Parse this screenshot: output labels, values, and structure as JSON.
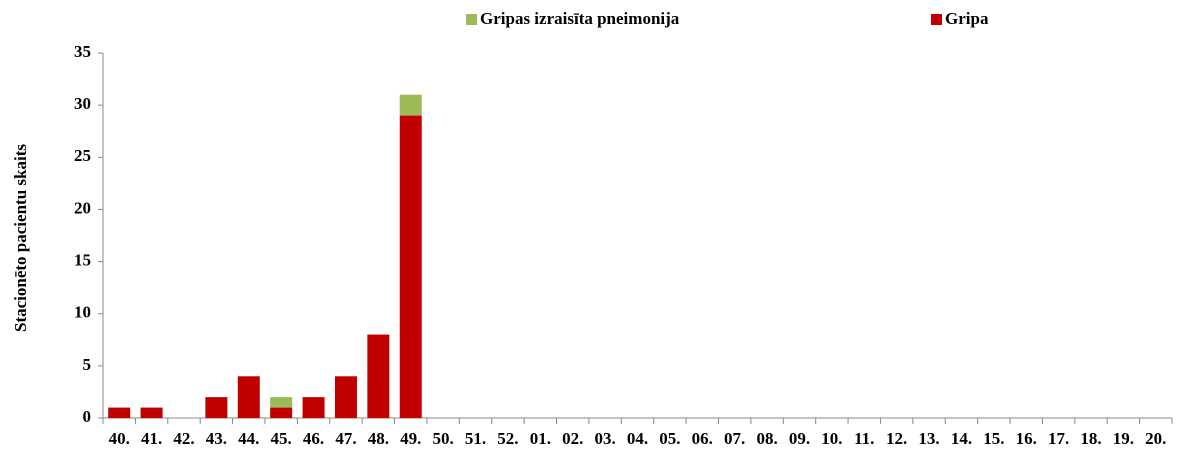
{
  "chart_data": {
    "type": "stacked_bar",
    "y_label": "Stacionēto pacientu skaits",
    "categories": [
      "40.",
      "41.",
      "42.",
      "43.",
      "44.",
      "45.",
      "46.",
      "47.",
      "48.",
      "49.",
      "50.",
      "51.",
      "52.",
      "01.",
      "02.",
      "03.",
      "04.",
      "05.",
      "06.",
      "07.",
      "08.",
      "09.",
      "10.",
      "11.",
      "12.",
      "13.",
      "14.",
      "15.",
      "16.",
      "17.",
      "18.",
      "19.",
      "20."
    ],
    "series": [
      {
        "name": "Gripa",
        "color": "#c00000",
        "values": [
          1,
          1,
          0,
          2,
          4,
          1,
          2,
          4,
          8,
          29,
          null,
          null,
          null,
          null,
          null,
          null,
          null,
          null,
          null,
          null,
          null,
          null,
          null,
          null,
          null,
          null,
          null,
          null,
          null,
          null,
          null,
          null,
          null
        ]
      },
      {
        "name": "Gripas izraisīta pneimonija",
        "color": "#9bbb59",
        "values": [
          0,
          0,
          0,
          0,
          0,
          1,
          0,
          0,
          0,
          2,
          null,
          null,
          null,
          null,
          null,
          null,
          null,
          null,
          null,
          null,
          null,
          null,
          null,
          null,
          null,
          null,
          null,
          null,
          null,
          null,
          null,
          null,
          null
        ]
      }
    ],
    "ylim": [
      0,
      35
    ],
    "yticks": [
      0,
      5,
      10,
      15,
      20,
      25,
      30,
      35
    ],
    "grid": false,
    "legend": "top"
  }
}
